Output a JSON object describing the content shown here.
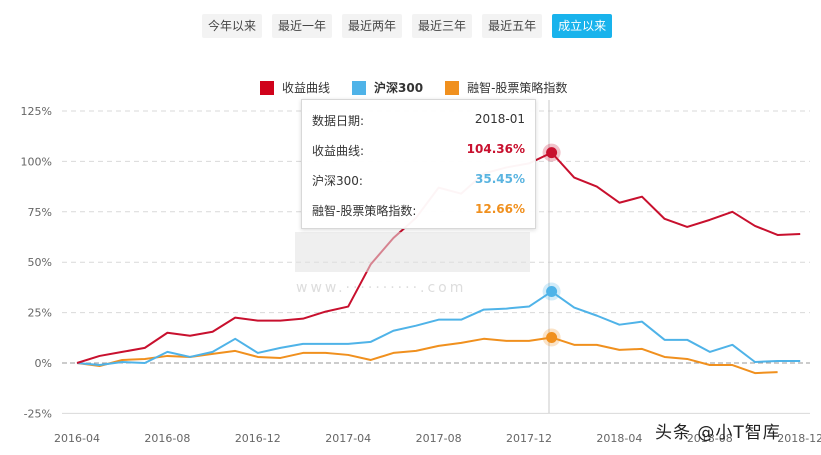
{
  "range_buttons": [
    {
      "label": "今年以来",
      "active": false
    },
    {
      "label": "最近一年",
      "active": false
    },
    {
      "label": "最近两年",
      "active": false
    },
    {
      "label": "最近三年",
      "active": false
    },
    {
      "label": "最近五年",
      "active": false
    },
    {
      "label": "成立以来",
      "active": true
    }
  ],
  "legend": [
    {
      "label": "收益曲线",
      "color": "#d0021b"
    },
    {
      "label": "沪深300",
      "color": "#4fb3e8"
    },
    {
      "label": "融智-股票策略指数",
      "color": "#f0901e"
    }
  ],
  "tooltip": {
    "date_label": "数据日期:",
    "date_value": "2018-01",
    "rows": [
      {
        "label": "收益曲线:",
        "value": "104.36%",
        "color": "#c8102e"
      },
      {
        "label": "沪深300:",
        "value": "35.45%",
        "color": "#5ab4e0"
      },
      {
        "label": "融智-股票策略指数:",
        "value": "12.66%",
        "color": "#f0901e"
      }
    ]
  },
  "watermark": "头条 @小T智库",
  "chart_data": {
    "type": "line",
    "title": "",
    "xlabel": "",
    "ylabel": "",
    "ylim": [
      -25,
      125
    ],
    "yticks": [
      "125%",
      "100%",
      "75%",
      "50%",
      "25%",
      "0%",
      "-25%"
    ],
    "xticks": [
      "2016-04",
      "2016-08",
      "2016-12",
      "2017-04",
      "2017-08",
      "2017-12",
      "2018-04",
      "2018-08",
      "2018-12"
    ],
    "grid": true,
    "legend_position": "top",
    "x": [
      "2016-04",
      "2016-05",
      "2016-06",
      "2016-07",
      "2016-08",
      "2016-09",
      "2016-10",
      "2016-11",
      "2016-12",
      "2017-01",
      "2017-02",
      "2017-03",
      "2017-04",
      "2017-05",
      "2017-06",
      "2017-07",
      "2017-08",
      "2017-09",
      "2017-10",
      "2017-11",
      "2017-12",
      "2018-01",
      "2018-02",
      "2018-03",
      "2018-04",
      "2018-05",
      "2018-06",
      "2018-07",
      "2018-08",
      "2018-09",
      "2018-10",
      "2018-11",
      "2018-12"
    ],
    "series": [
      {
        "name": "收益曲线",
        "color": "#c8102e",
        "values": [
          0,
          3.5,
          5.5,
          7.5,
          15,
          13.5,
          15.5,
          22.5,
          21,
          21,
          22,
          25.5,
          28,
          49,
          62,
          72,
          87,
          84,
          94,
          97,
          99,
          104.36,
          92,
          87.5,
          79.5,
          82.5,
          71.5,
          67.5,
          71,
          75,
          68,
          63.5,
          64
        ]
      },
      {
        "name": "沪深300",
        "color": "#4fb3e8",
        "values": [
          0,
          -1,
          0.5,
          0,
          5.5,
          3,
          5.5,
          12,
          5,
          7.5,
          9.5,
          9.5,
          9.5,
          10.5,
          16,
          18.5,
          21.5,
          21.5,
          26.5,
          27,
          28,
          35.45,
          27.5,
          23.5,
          19,
          20.5,
          11.5,
          11.5,
          5.5,
          9,
          0.5,
          1,
          1
        ]
      },
      {
        "name": "融智-股票策略指数",
        "color": "#f0901e",
        "values": [
          0,
          -1.5,
          1.5,
          2,
          3.5,
          3,
          4.5,
          6,
          3,
          2.5,
          5,
          5,
          4,
          1.5,
          5,
          6,
          8.5,
          10,
          12,
          11,
          11,
          12.66,
          9,
          9,
          6.5,
          7,
          3,
          2,
          -1,
          -1,
          -5,
          -4.5,
          null
        ]
      }
    ]
  }
}
